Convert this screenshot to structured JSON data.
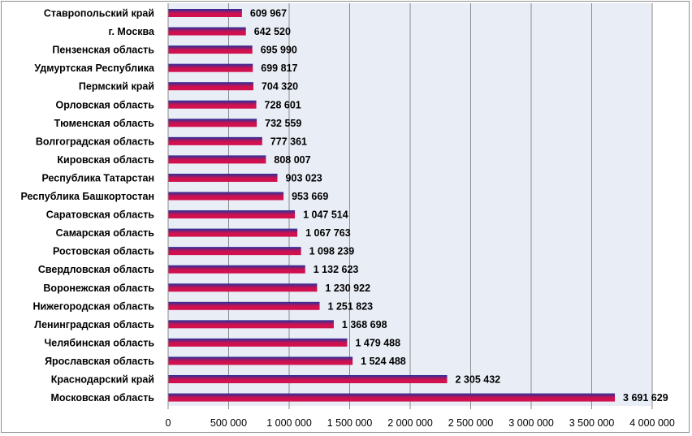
{
  "chart_data": {
    "type": "bar",
    "orientation": "horizontal",
    "title": "",
    "xlabel": "",
    "ylabel": "",
    "categories": [
      "Ставропольский край",
      "г. Москва",
      "Пензенская область",
      "Удмуртская Республика",
      "Пермский край",
      "Орловская область",
      "Тюменская область",
      "Волгоградская область",
      "Кировская область",
      "Республика Татарстан",
      "Республика Башкортостан",
      "Саратовская область",
      "Самарская область",
      "Ростовская область",
      "Свердловская область",
      "Воронежская область",
      "Нижегородская область",
      "Ленинградская область",
      "Челябинская область",
      "Ярославская область",
      "Краснодарский край",
      "Московская область"
    ],
    "values": [
      609967,
      642520,
      695990,
      699817,
      704320,
      728601,
      732559,
      777361,
      808007,
      903023,
      953669,
      1047514,
      1067763,
      1098239,
      1132623,
      1230922,
      1251823,
      1368698,
      1479488,
      1524488,
      2305432,
      3691629
    ],
    "value_labels": [
      "609 967",
      "642 520",
      "695 990",
      "699 817",
      "704 320",
      "728 601",
      "732 559",
      "777 361",
      "808 007",
      "903 023",
      "953 669",
      "1 047 514",
      "1 067 763",
      "1 098 239",
      "1 132 623",
      "1 230 922",
      "1 251 823",
      "1 368 698",
      "1 479 488",
      "1 524 488",
      "2 305 432",
      "3 691 629"
    ],
    "xlim": [
      0,
      4000000
    ],
    "x_ticks": [
      0,
      500000,
      1000000,
      1500000,
      2000000,
      2500000,
      3000000,
      3500000,
      4000000
    ],
    "x_tick_labels": [
      "0",
      "500 000",
      "1 000 000",
      "1 500 000",
      "2 000 000",
      "2 500 000",
      "3 000 000",
      "3 500 000",
      "4 000 000"
    ],
    "grid": "vertical",
    "legend": "none",
    "colors": {
      "bar_top": "#2a2f9a",
      "bar_bottom": "#d0104f",
      "plot_background": "#e9edf6",
      "gridline": "#8a8a8a",
      "frame": "#8f8f8f"
    }
  }
}
